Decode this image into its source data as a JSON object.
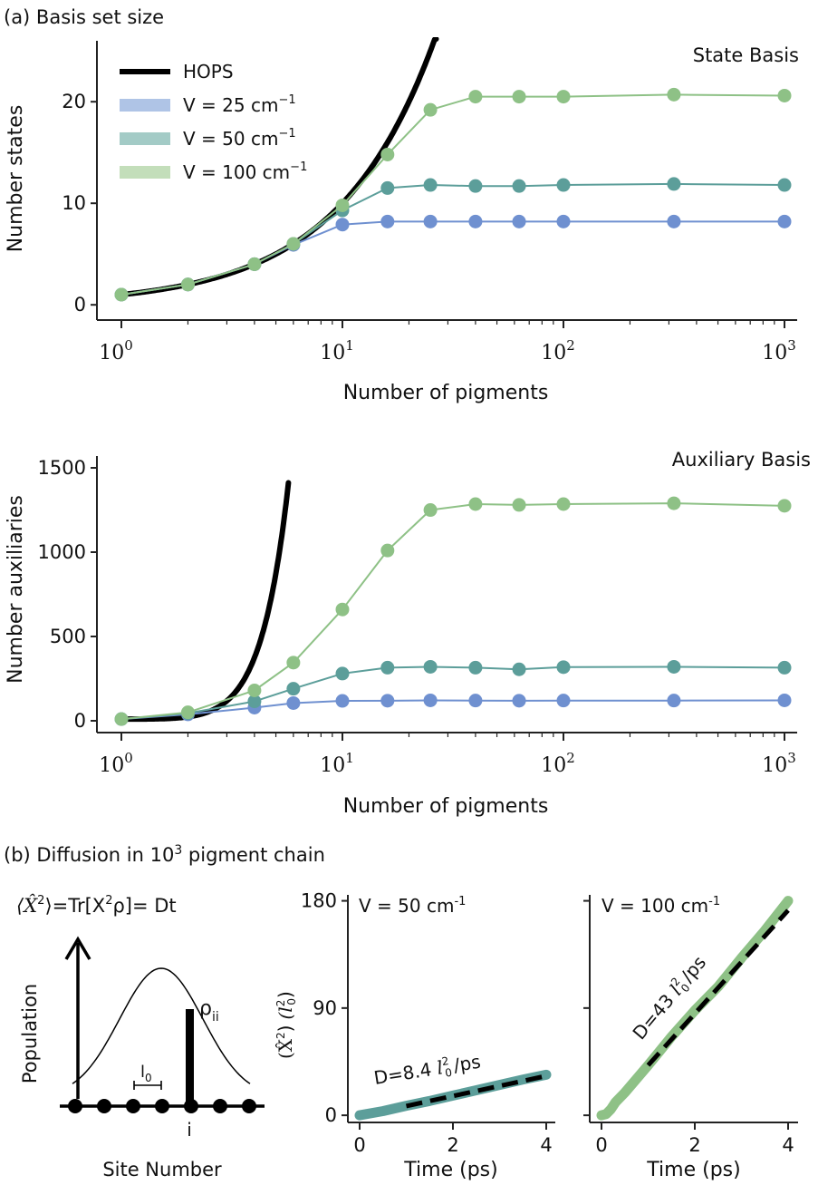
{
  "panel_a_title": "(a) Basis set size",
  "panel_b_title": "(b) Diffusion in 10",
  "panel_b_title_sup": "3",
  "panel_b_title_rest": " pigment chain",
  "colors": {
    "hops": "#000000",
    "v25": "#6f90d0",
    "v50": "#5c9e9a",
    "v100": "#8ec186",
    "v25_leg": "#afc4e6",
    "v50_leg": "#a3cbc6",
    "v100_leg": "#c3deba"
  },
  "diagram": {
    "formula_left": "⟨X̂",
    "formula_sup": "2",
    "formula_mid": "⟩=Tr[X",
    "formula_sup2": "2",
    "formula_right": "ρ]= Dt",
    "population_label": "Population",
    "site_label": "Site Number",
    "rho_label": "ρ",
    "rho_sub": "ii",
    "l0_label": "l",
    "l0_sub": "0",
    "i_label": "i"
  },
  "chart_data": [
    {
      "type": "line",
      "title": "State Basis",
      "xlabel": "Number of pigments",
      "ylabel": "Number states",
      "xscale": "log",
      "xlim": [
        1,
        1000
      ],
      "ylim": [
        -1.5,
        26
      ],
      "yticks": [
        0,
        10,
        20
      ],
      "xticks": [
        1,
        10,
        100,
        1000
      ],
      "xtick_labels": [
        {
          "base": "10",
          "exp": "0"
        },
        {
          "base": "10",
          "exp": "1"
        },
        {
          "base": "10",
          "exp": "2"
        },
        {
          "base": "10",
          "exp": "3"
        }
      ],
      "legend": {
        "position": "top-left",
        "entries": [
          {
            "key": "hops",
            "text": "HOPS"
          },
          {
            "key": "v25",
            "text": "V = 25 cm",
            "sup": "−1"
          },
          {
            "key": "v50",
            "text": "V = 50 cm",
            "sup": "−1"
          },
          {
            "key": "v100",
            "text": "V = 100 cm",
            "sup": "−1"
          }
        ]
      },
      "x": [
        1,
        2,
        4,
        6,
        10,
        16,
        25,
        40,
        63,
        100,
        316,
        1000
      ],
      "series": [
        {
          "name": "HOPS",
          "key": "hops",
          "curve": "y = N",
          "x_range": [
            1,
            27
          ]
        },
        {
          "name": "V = 25 cm−1",
          "key": "v25",
          "values": [
            1,
            2,
            4,
            5.9,
            7.9,
            8.2,
            8.2,
            8.2,
            8.2,
            8.2,
            8.2,
            8.2
          ]
        },
        {
          "name": "V = 50 cm−1",
          "key": "v50",
          "values": [
            1,
            2,
            4,
            6,
            9.3,
            11.5,
            11.8,
            11.7,
            11.7,
            11.8,
            11.9,
            11.8
          ]
        },
        {
          "name": "V = 100 cm−1",
          "key": "v100",
          "values": [
            1,
            2,
            4,
            6,
            9.8,
            14.8,
            19.2,
            20.5,
            20.5,
            20.5,
            20.7,
            20.6
          ]
        }
      ]
    },
    {
      "type": "line",
      "title": "Auxiliary Basis",
      "xlabel": "Number of pigments",
      "ylabel": "Number auxiliaries",
      "xscale": "log",
      "xlim": [
        1,
        1000
      ],
      "ylim": [
        -70,
        1570
      ],
      "yticks": [
        0,
        500,
        1000,
        1500
      ],
      "xticks": [
        1,
        10,
        100,
        1000
      ],
      "xtick_labels": [
        {
          "base": "10",
          "exp": "0"
        },
        {
          "base": "10",
          "exp": "1"
        },
        {
          "base": "10",
          "exp": "2"
        },
        {
          "base": "10",
          "exp": "3"
        }
      ],
      "x": [
        1,
        2,
        4,
        6,
        10,
        16,
        25,
        40,
        63,
        100,
        316,
        1000
      ],
      "series": [
        {
          "name": "HOPS",
          "key": "hops",
          "curve": "y = 10 + 13.5(N−1)^3",
          "x_range": [
            1,
            5.7
          ]
        },
        {
          "name": "V = 25 cm−1",
          "key": "v25",
          "values": [
            10,
            38,
            78,
            105,
            118,
            119,
            121,
            120,
            119,
            120,
            120,
            121
          ]
        },
        {
          "name": "V = 50 cm−1",
          "key": "v50",
          "values": [
            10,
            45,
            115,
            190,
            280,
            315,
            320,
            315,
            305,
            318,
            320,
            315
          ]
        },
        {
          "name": "V = 100 cm−1",
          "key": "v100",
          "values": [
            10,
            50,
            180,
            345,
            660,
            1010,
            1250,
            1285,
            1280,
            1285,
            1290,
            1275
          ]
        }
      ]
    },
    {
      "type": "line",
      "title": "V = 50 cm",
      "title_sup": "-1",
      "xlabel": "Time (ps)",
      "ylabel_main": "(X̂",
      "ylabel_sup": "2",
      "ylabel_close": ")",
      "ylabel_unit": "(l",
      "ylabel_unit_sup": "2",
      "ylabel_unit_sub": "0",
      "ylabel_unit_close": ")",
      "xlim": [
        -0.1,
        4.1
      ],
      "ylim": [
        -6,
        185
      ],
      "xticks": [
        0,
        2,
        4
      ],
      "yticks": [
        0,
        90,
        180
      ],
      "annotation": {
        "text": "D=8.4 ",
        "l": "l",
        "sup": "2",
        "sub": "0",
        "rest": "/ps"
      },
      "series": [
        {
          "name": "data",
          "key": "v50",
          "x": [
            0,
            0.5,
            1,
            1.5,
            2,
            2.5,
            3,
            3.5,
            4
          ],
          "values": [
            0,
            3.5,
            8,
            12,
            16.5,
            21,
            25.5,
            30,
            34
          ]
        },
        {
          "name": "fit",
          "key": "fit",
          "x": [
            1,
            4
          ],
          "values": [
            7.8,
            33
          ]
        }
      ]
    },
    {
      "type": "line",
      "title": "V = 100 cm",
      "title_sup": "-1",
      "xlabel": "Time (ps)",
      "xlim": [
        -0.1,
        4.1
      ],
      "ylim": [
        -6,
        185
      ],
      "xticks": [
        0,
        2,
        4
      ],
      "yticks": [
        0,
        90,
        180
      ],
      "annotation": {
        "text": "D=43 ",
        "l": "l",
        "sup": "2",
        "sub": "0",
        "rest": "/ps"
      },
      "series": [
        {
          "name": "data",
          "key": "v100",
          "x": [
            0,
            0.1,
            0.2,
            0.3,
            0.5,
            1,
            1.5,
            2,
            2.5,
            3,
            3.5,
            4
          ],
          "values": [
            0,
            1,
            5,
            11,
            19,
            42,
            66,
            88,
            108,
            132,
            155,
            180
          ]
        },
        {
          "name": "fit",
          "key": "fit",
          "x": [
            1,
            4
          ],
          "values": [
            42,
            172
          ]
        }
      ]
    }
  ]
}
